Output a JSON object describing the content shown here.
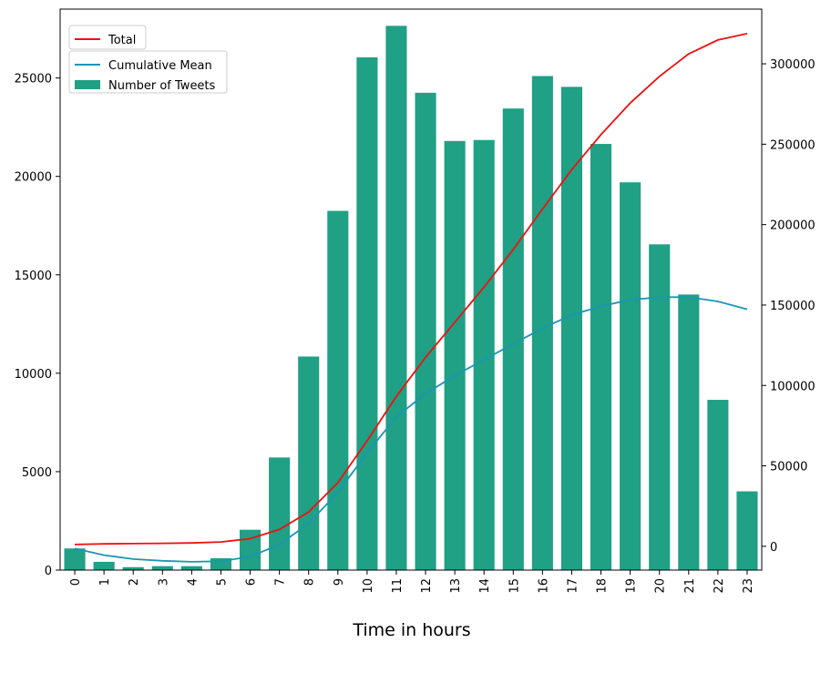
{
  "chart_data": {
    "type": "bar",
    "xlabel": "Time in hours",
    "categories": [
      "0",
      "1",
      "2",
      "3",
      "4",
      "5",
      "6",
      "7",
      "8",
      "9",
      "10",
      "11",
      "12",
      "13",
      "14",
      "15",
      "16",
      "17",
      "18",
      "19",
      "20",
      "21",
      "22",
      "23"
    ],
    "series": [
      {
        "name": "Number of Tweets",
        "type": "bar",
        "axis": "left",
        "color": "#20a084",
        "values": [
          1100,
          420,
          150,
          200,
          200,
          600,
          2050,
          5720,
          10850,
          18250,
          26050,
          27650,
          24250,
          21800,
          21850,
          23450,
          25100,
          24550,
          21650,
          19700,
          16550,
          14000,
          8650,
          4000
        ]
      },
      {
        "name": "Cumulative Mean",
        "type": "line",
        "axis": "left",
        "color": "#1a96b4",
        "values": [
          1100,
          760,
          560,
          470,
          420,
          450,
          680,
          1300,
          2360,
          3950,
          5960,
          7780,
          8960,
          9880,
          10690,
          11490,
          12290,
          12960,
          13410,
          13730,
          13860,
          13870,
          13650,
          13250
        ]
      },
      {
        "name": "Total",
        "type": "line",
        "axis": "right",
        "color": "#ee1111",
        "values": [
          1100,
          1520,
          1670,
          1870,
          2070,
          2670,
          4720,
          10440,
          21290,
          39540,
          65590,
          93240,
          117490,
          139290,
          161140,
          184590,
          209690,
          234240,
          255890,
          275590,
          292140,
          306140,
          314790,
          318790
        ]
      }
    ],
    "y_left": {
      "lim": [
        0,
        28500
      ],
      "ticks": [
        0,
        5000,
        10000,
        15000,
        20000,
        25000
      ]
    },
    "y_right": {
      "lim": [
        -14800,
        334000
      ],
      "ticks": [
        0,
        50000,
        100000,
        150000,
        200000,
        250000,
        300000
      ]
    },
    "legends": [
      {
        "placement": "top-left",
        "entries": [
          "Total"
        ]
      },
      {
        "placement": "top-left",
        "entries": [
          "Cumulative Mean",
          "Number of Tweets"
        ]
      }
    ],
    "grid": false
  }
}
